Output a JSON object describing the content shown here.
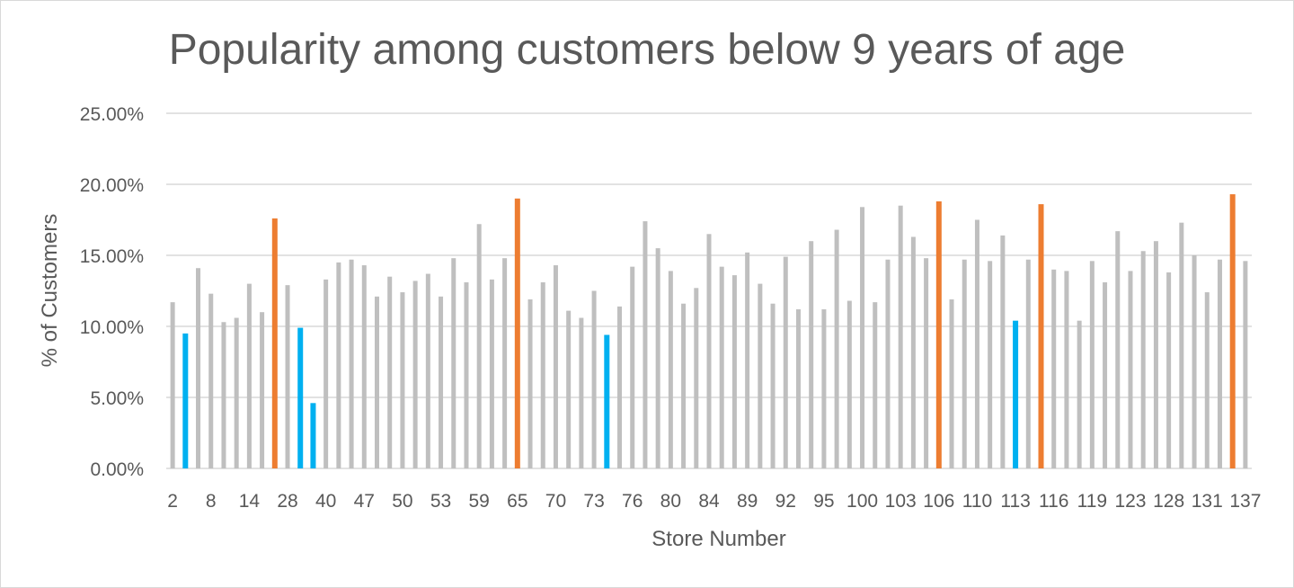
{
  "chart_data": {
    "type": "bar",
    "title": "Popularity among customers below 9 years of age",
    "xlabel": "Store Number",
    "ylabel": "% of Customers",
    "ylim": [
      0,
      25
    ],
    "yticks": [
      "0.00%",
      "5.00%",
      "10.00%",
      "15.00%",
      "20.00%",
      "25.00%"
    ],
    "xtick_labels": [
      "2",
      "8",
      "14",
      "28",
      "40",
      "47",
      "50",
      "53",
      "59",
      "65",
      "70",
      "73",
      "76",
      "80",
      "84",
      "89",
      "92",
      "95",
      "100",
      "103",
      "106",
      "110",
      "113",
      "116",
      "119",
      "123",
      "128",
      "131",
      "137"
    ],
    "grid": true,
    "colors": {
      "default": "#bfbfbf",
      "high": "#ed7d31",
      "low": "#00b0f0",
      "grid": "#d9d9d9",
      "text": "#595959"
    },
    "values": [
      11.7,
      9.5,
      14.1,
      12.3,
      10.3,
      10.6,
      13.0,
      11.0,
      17.6,
      12.9,
      9.9,
      4.6,
      13.3,
      14.5,
      14.7,
      14.3,
      12.1,
      13.5,
      12.4,
      13.2,
      13.7,
      12.1,
      14.8,
      13.1,
      17.2,
      13.3,
      14.8,
      19.0,
      11.9,
      13.1,
      14.3,
      11.1,
      10.6,
      12.5,
      9.4,
      11.4,
      14.2,
      17.4,
      15.5,
      13.9,
      11.6,
      12.7,
      16.5,
      14.2,
      13.6,
      15.2,
      13.0,
      11.6,
      14.9,
      11.2,
      16.0,
      11.2,
      16.8,
      11.8,
      18.4,
      11.7,
      14.7,
      18.5,
      16.3,
      14.8,
      18.8,
      11.9,
      14.7,
      17.5,
      14.6,
      16.4,
      10.4,
      14.7,
      18.6,
      14.0,
      13.9,
      10.4,
      14.6,
      13.1,
      16.7,
      13.9,
      15.3,
      16.0,
      13.8,
      17.3,
      15.0,
      12.4,
      14.7,
      19.3,
      14.6
    ],
    "highlights": [
      "default",
      "low",
      "default",
      "default",
      "default",
      "default",
      "default",
      "default",
      "high",
      "default",
      "low",
      "low",
      "default",
      "default",
      "default",
      "default",
      "default",
      "default",
      "default",
      "default",
      "default",
      "default",
      "default",
      "default",
      "default",
      "default",
      "default",
      "high",
      "default",
      "default",
      "default",
      "default",
      "default",
      "default",
      "low",
      "default",
      "default",
      "default",
      "default",
      "default",
      "default",
      "default",
      "default",
      "default",
      "default",
      "default",
      "default",
      "default",
      "default",
      "default",
      "default",
      "default",
      "default",
      "default",
      "default",
      "default",
      "default",
      "default",
      "default",
      "default",
      "high",
      "default",
      "default",
      "default",
      "default",
      "default",
      "low",
      "default",
      "high",
      "default",
      "default",
      "default",
      "default",
      "default",
      "default",
      "default",
      "default",
      "default",
      "default",
      "default",
      "default",
      "default",
      "default",
      "high",
      "default"
    ]
  }
}
